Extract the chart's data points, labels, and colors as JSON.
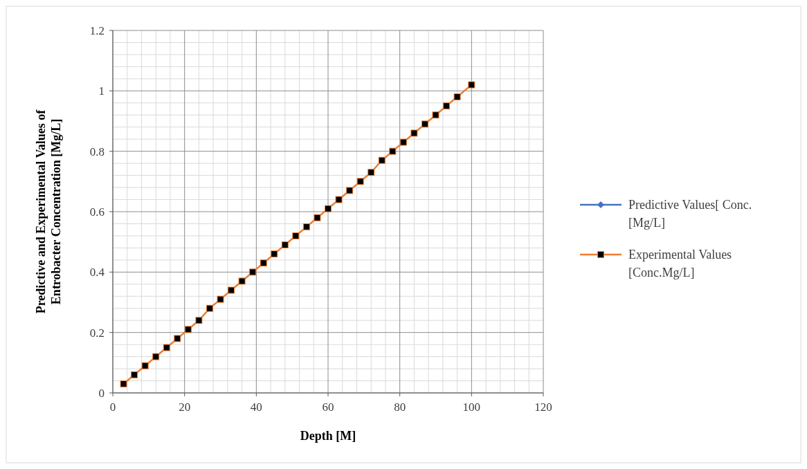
{
  "chart_data": {
    "type": "line",
    "xlabel": "Depth [M]",
    "ylabel": "Predictive and Experimental Values of Entrobacter  Concentration [Mg/L]",
    "x": [
      3,
      6,
      9,
      12,
      15,
      18,
      21,
      24,
      27,
      30,
      33,
      36,
      39,
      42,
      45,
      48,
      51,
      54,
      57,
      60,
      63,
      66,
      69,
      72,
      75,
      78,
      81,
      84,
      87,
      90,
      93,
      96,
      100
    ],
    "series": [
      {
        "name": "Predictive Values[ Conc. [Mg/L]",
        "color": "#4472c4",
        "marker": "diamond",
        "values": [
          null,
          null,
          null,
          null,
          null,
          null,
          null,
          null,
          null,
          null,
          null,
          null,
          null,
          null,
          null,
          null,
          null,
          null,
          null,
          null,
          null,
          null,
          null,
          null,
          null,
          null,
          null,
          null,
          null,
          null,
          null,
          null,
          null
        ]
      },
      {
        "name": "Experimental Values [Conc.Mg/L]",
        "color": "#ed7d31",
        "marker": "square",
        "values": [
          0.03,
          0.06,
          0.09,
          0.12,
          0.15,
          0.18,
          0.21,
          0.24,
          0.28,
          0.31,
          0.34,
          0.37,
          0.4,
          0.43,
          0.46,
          0.49,
          0.52,
          0.55,
          0.58,
          0.61,
          0.64,
          0.67,
          0.7,
          0.73,
          0.77,
          0.8,
          0.83,
          0.86,
          0.89,
          0.92,
          0.95,
          0.98,
          1.02
        ]
      }
    ],
    "xlim": [
      0,
      120
    ],
    "xticks": [
      0,
      20,
      40,
      60,
      80,
      100,
      120
    ],
    "ylim": [
      0,
      1.2
    ],
    "yticks": [
      0,
      0.2,
      0.4,
      0.6,
      0.8,
      1,
      1.2
    ],
    "grid": true,
    "legend": "right"
  }
}
